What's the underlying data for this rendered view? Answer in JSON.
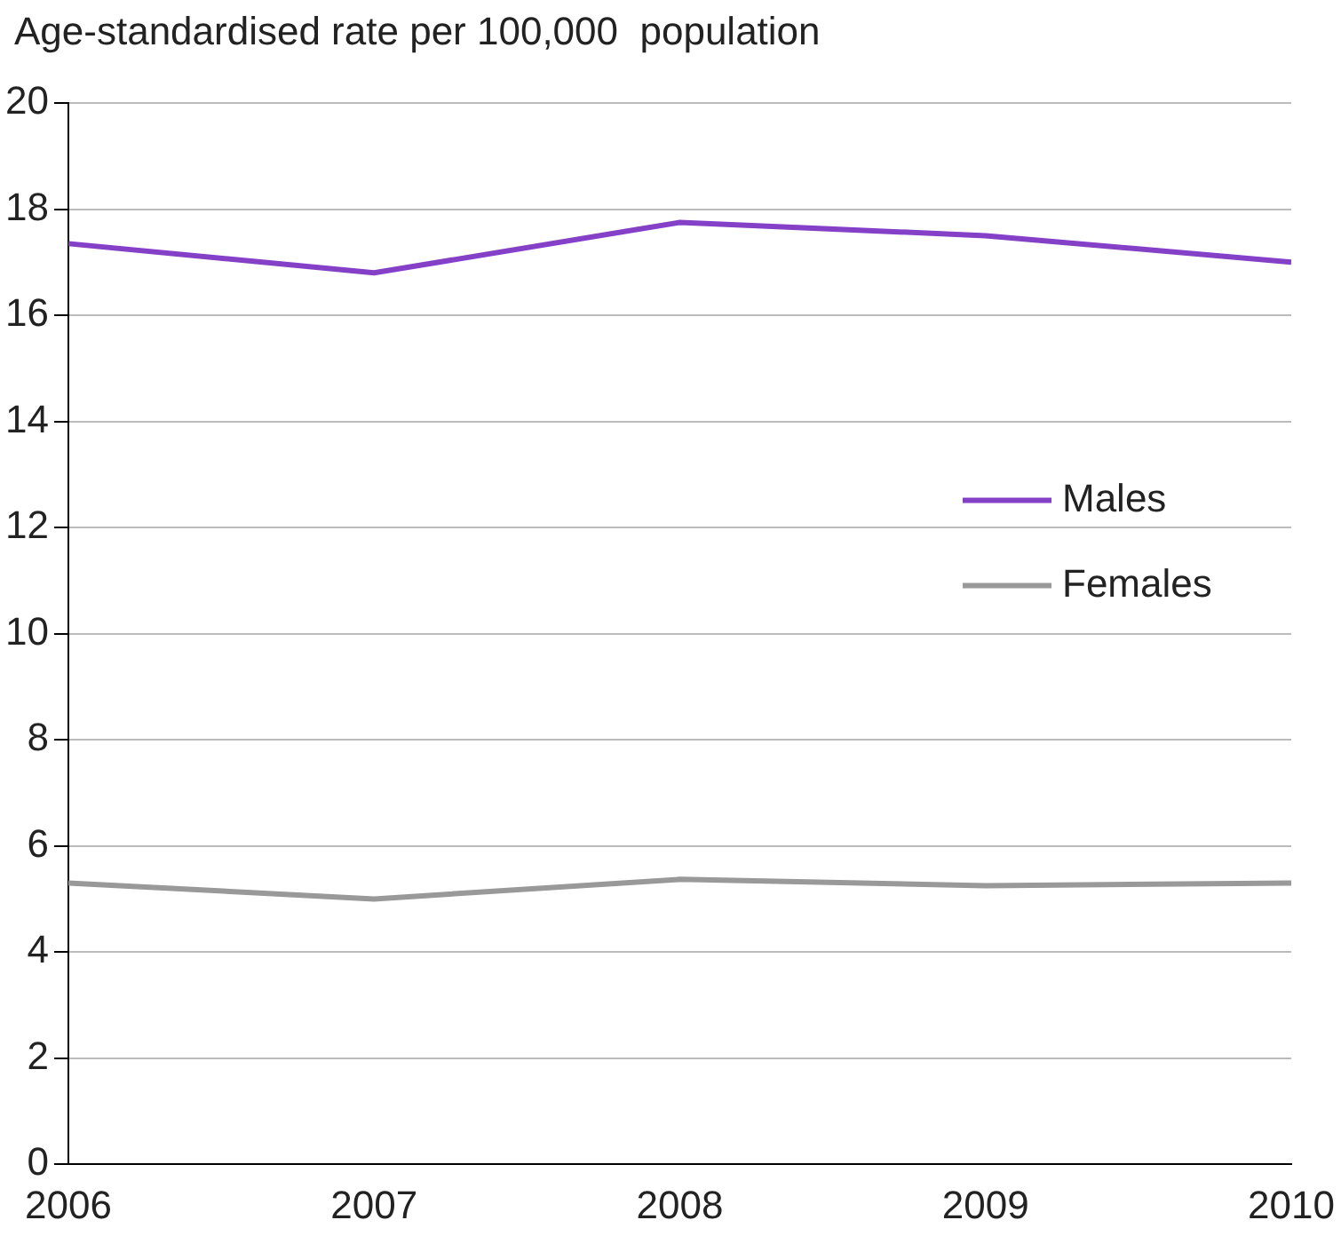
{
  "chart_data": {
    "type": "line",
    "ylabel": "Age-standardised rate per 100,000  population",
    "x": [
      2006,
      2007,
      2008,
      2009,
      2010
    ],
    "series": [
      {
        "name": "Males",
        "color": "#8540c8",
        "values": [
          17.35,
          16.8,
          17.75,
          17.5,
          17.0
        ]
      },
      {
        "name": "Females",
        "color": "#999999",
        "values": [
          5.3,
          5.0,
          5.37,
          5.25,
          5.3
        ]
      }
    ],
    "xlim": [
      2006,
      2010
    ],
    "xticks": [
      2006,
      2007,
      2008,
      2009,
      2010
    ],
    "ylim": [
      0,
      20
    ],
    "yticks": [
      0,
      2,
      4,
      6,
      8,
      10,
      12,
      14,
      16,
      18,
      20
    ],
    "grid": "y",
    "legend": "right",
    "marker": "none",
    "line_style": "solid"
  }
}
